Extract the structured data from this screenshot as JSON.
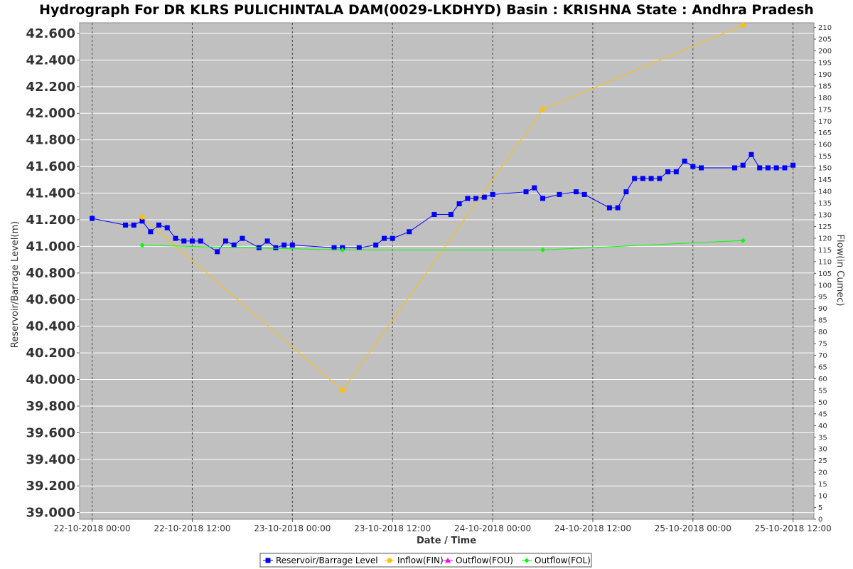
{
  "chart_data": {
    "type": "line",
    "title": "Hydrograph For DR KLRS PULICHINTALA DAM(0029-LKDHYD) Basin : KRISHNA State : Andhra Pradesh",
    "xlabel": "Date / Time",
    "ylabel_left": "Reservoir/Barrage Level(m)",
    "ylabel_right": "Flow(in Cumec)",
    "x_ticks": [
      {
        "label": "22-10-2018 00:00",
        "hours": 0
      },
      {
        "label": "22-10-2018 12:00",
        "hours": 12
      },
      {
        "label": "23-10-2018 00:00",
        "hours": 24
      },
      {
        "label": "23-10-2018 12:00",
        "hours": 36
      },
      {
        "label": "24-10-2018 00:00",
        "hours": 48
      },
      {
        "label": "24-10-2018 12:00",
        "hours": 60
      },
      {
        "label": "25-10-2018 00:00",
        "hours": 72
      },
      {
        "label": "25-10-2018 12:00",
        "hours": 84
      }
    ],
    "x_range_hours": [
      -1.5,
      86.5
    ],
    "y_left_range": [
      38.95,
      42.68
    ],
    "y_left_ticks": [
      "39.000",
      "39.200",
      "39.400",
      "39.600",
      "39.800",
      "40.000",
      "40.200",
      "40.400",
      "40.600",
      "40.800",
      "41.000",
      "41.200",
      "41.400",
      "41.600",
      "41.800",
      "42.000",
      "42.200",
      "42.400",
      "42.600"
    ],
    "y_right_range": [
      0,
      212
    ],
    "y_right_ticks": [
      0,
      5,
      10,
      15,
      20,
      25,
      30,
      35,
      40,
      45,
      50,
      55,
      60,
      65,
      70,
      75,
      80,
      85,
      90,
      95,
      100,
      105,
      110,
      115,
      120,
      125,
      130,
      135,
      140,
      145,
      150,
      155,
      160,
      165,
      170,
      175,
      180,
      185,
      190,
      195,
      200,
      205,
      210
    ],
    "grid": true,
    "legend_position": "bottom",
    "series": [
      {
        "name": "Reservoir/Barrage Level",
        "color": "#0000ff",
        "marker": "square",
        "axis": "left",
        "points": [
          [
            0,
            41.21
          ],
          [
            4,
            41.16
          ],
          [
            5,
            41.16
          ],
          [
            6,
            41.19
          ],
          [
            7,
            41.11
          ],
          [
            8,
            41.16
          ],
          [
            9,
            41.14
          ],
          [
            10,
            41.06
          ],
          [
            11,
            41.04
          ],
          [
            12,
            41.04
          ],
          [
            13,
            41.04
          ],
          [
            15,
            40.96
          ],
          [
            16,
            41.04
          ],
          [
            17,
            41.01
          ],
          [
            18,
            41.06
          ],
          [
            20,
            40.99
          ],
          [
            21,
            41.04
          ],
          [
            22,
            40.99
          ],
          [
            23,
            41.01
          ],
          [
            24,
            41.01
          ],
          [
            29,
            40.99
          ],
          [
            30,
            40.99
          ],
          [
            32,
            40.99
          ],
          [
            34,
            41.01
          ],
          [
            35,
            41.06
          ],
          [
            36,
            41.06
          ],
          [
            38,
            41.11
          ],
          [
            41,
            41.24
          ],
          [
            43,
            41.24
          ],
          [
            44,
            41.32
          ],
          [
            45,
            41.36
          ],
          [
            46,
            41.36
          ],
          [
            47,
            41.37
          ],
          [
            48,
            41.39
          ],
          [
            52,
            41.41
          ],
          [
            53,
            41.44
          ],
          [
            54,
            41.36
          ],
          [
            56,
            41.39
          ],
          [
            58,
            41.41
          ],
          [
            59,
            41.39
          ],
          [
            62,
            41.29
          ],
          [
            63,
            41.29
          ],
          [
            64,
            41.41
          ],
          [
            65,
            41.51
          ],
          [
            66,
            41.51
          ],
          [
            67,
            41.51
          ],
          [
            68,
            41.51
          ],
          [
            69,
            41.56
          ],
          [
            70,
            41.56
          ],
          [
            71,
            41.64
          ],
          [
            72,
            41.6
          ],
          [
            73,
            41.59
          ],
          [
            77,
            41.59
          ],
          [
            78,
            41.61
          ],
          [
            79,
            41.69
          ],
          [
            80,
            41.59
          ],
          [
            81,
            41.59
          ],
          [
            82,
            41.59
          ],
          [
            83,
            41.59
          ],
          [
            84,
            41.61
          ]
        ]
      },
      {
        "name": "Inflow(FIN)",
        "color": "#ffc000",
        "marker": "circle",
        "axis": "right",
        "points": [
          [
            6,
            129
          ],
          [
            30,
            55
          ],
          [
            54,
            175
          ],
          [
            78,
            211
          ]
        ]
      },
      {
        "name": "Outflow(FOU)",
        "color": "#ff00ff",
        "marker": "triangle",
        "axis": "right",
        "points": []
      },
      {
        "name": "Outflow(FOL)",
        "color": "#00ff00",
        "marker": "diamond",
        "axis": "right",
        "points": [
          [
            6,
            117
          ],
          [
            30,
            115
          ],
          [
            54,
            115
          ],
          [
            78,
            119
          ]
        ]
      }
    ]
  }
}
